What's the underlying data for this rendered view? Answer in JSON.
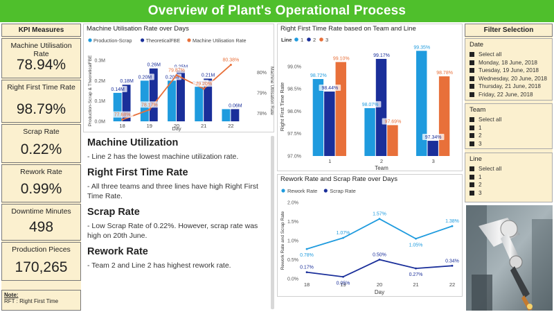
{
  "header": {
    "title": "Overview of Plant's Operational Process"
  },
  "kpi": {
    "title": "KPI Measures",
    "items": [
      {
        "label": "Machine Utilisation Rate",
        "value": "78.94%"
      },
      {
        "label": "Right First Time Rate",
        "value": "98.79%"
      },
      {
        "label": "Scrap Rate",
        "value": "0.22%"
      },
      {
        "label": "Rework Rate",
        "value": "0.99%"
      },
      {
        "label": "Downtime Minutes",
        "value": "498"
      },
      {
        "label": "Production Pieces",
        "value": "170,265"
      }
    ],
    "note_title": "Note:",
    "note_text": "RFT : Right First Time"
  },
  "narrative": {
    "sections": [
      {
        "heading": "Machine Utilization",
        "text": "- Line 2 has the lowest machine utilization rate."
      },
      {
        "heading": "Right First Time Rate",
        "text": "- All three teams and three lines have high Right First Time Rate."
      },
      {
        "heading": "Scrap Rate",
        "text": "- Low Scrap Rate of 0.22%. However, scrap rate was high on 20th June."
      },
      {
        "heading": "Rework Rate",
        "text": "- Team 2 and Line 2 has highest rework rate."
      }
    ]
  },
  "filters": {
    "title": "Filter Selection",
    "date": {
      "label": "Date",
      "items": [
        "Select all",
        "Monday, 18 June, 2018",
        "Tuesday, 19 June, 2018",
        "Wednesday, 20 June, 2018",
        "Thursday, 21 June, 2018",
        "Friday, 22 June, 2018"
      ]
    },
    "team": {
      "label": "Team",
      "items": [
        "Select all",
        "1",
        "2",
        "3"
      ]
    },
    "line": {
      "label": "Line",
      "items": [
        "Select all",
        "1",
        "2",
        "3"
      ]
    }
  },
  "chart_data": [
    {
      "type": "bar",
      "title": "Machine Utilisation Rate over Days",
      "xlabel": "Day",
      "ylabel": "Production-Scrap & TheoreticalFBE",
      "y2label": "Machine Utilisation Rate",
      "categories": [
        "18",
        "19",
        "20",
        "21",
        "22"
      ],
      "series": [
        {
          "name": "Production-Scrap",
          "values": [
            0.14,
            0.2,
            0.2,
            0.17,
            0.06
          ],
          "labels": [
            "0.14M",
            "0.20M",
            "0.20M",
            "0.17M",
            ""
          ]
        },
        {
          "name": "TheoreticalFBE",
          "values": [
            0.18,
            0.26,
            0.25,
            0.21,
            0.06
          ],
          "labels": [
            "0.18M",
            "0.26M",
            "0.25M",
            "0.21M",
            "0.06M"
          ]
        },
        {
          "name": "Machine Utilisation Rate",
          "type": "line",
          "axis": "secondary",
          "values": [
            77.68,
            78.17,
            79.87,
            79.2,
            80.38
          ],
          "labels": [
            "77.68%",
            "78.17%",
            "79.87%",
            "79.20%",
            "80.38%"
          ]
        }
      ],
      "ylim": [
        0,
        0.3
      ],
      "yticks": [
        "0.0M",
        "0.1M",
        "0.2M",
        "0.3M"
      ],
      "y2lim": [
        77.6,
        80.6
      ],
      "y2ticks": [
        "78%",
        "79%",
        "80%"
      ],
      "legend": "top",
      "colors": {
        "Production-Scrap": "#1f9bde",
        "TheoreticalFBE": "#1a2f9a",
        "Machine Utilisation Rate": "#e8703a"
      }
    },
    {
      "type": "bar",
      "title": "Right First Time Rate based on Team and Line",
      "xlabel": "Team",
      "ylabel": "Right First Time Rate",
      "legend_title": "Line",
      "categories": [
        "1",
        "2",
        "3"
      ],
      "series": [
        {
          "name": "1",
          "values": [
            98.72,
            98.07,
            99.35
          ]
        },
        {
          "name": "2",
          "values": [
            98.44,
            99.17,
            97.34
          ]
        },
        {
          "name": "3",
          "values": [
            99.1,
            97.69,
            98.78
          ]
        }
      ],
      "ylim": [
        97.0,
        99.2
      ],
      "yticks": [
        "97.0%",
        "97.5%",
        "98.0%",
        "98.5%",
        "99.0%"
      ],
      "legend": "top-left",
      "colors": {
        "1": "#1f9bde",
        "2": "#1a2f9a",
        "3": "#e8703a"
      }
    },
    {
      "type": "line",
      "title": "Rework Rate and Scrap Rate over Days",
      "xlabel": "Day",
      "ylabel": "Rework Rate and Scrap Rate",
      "x": [
        "18",
        "19",
        "20",
        "21",
        "22"
      ],
      "series": [
        {
          "name": "Rework Rate",
          "values": [
            0.78,
            1.07,
            1.57,
            1.05,
            1.38
          ]
        },
        {
          "name": "Scrap Rate",
          "values": [
            0.17,
            0.05,
            0.5,
            0.27,
            0.34
          ]
        }
      ],
      "ylim": [
        0,
        2.0
      ],
      "yticks": [
        "0.0%",
        "0.5%",
        "1.0%",
        "1.5%",
        "2.0%"
      ],
      "legend": "top-left",
      "colors": {
        "Rework Rate": "#1f9bde",
        "Scrap Rate": "#1a2f9a"
      }
    }
  ]
}
